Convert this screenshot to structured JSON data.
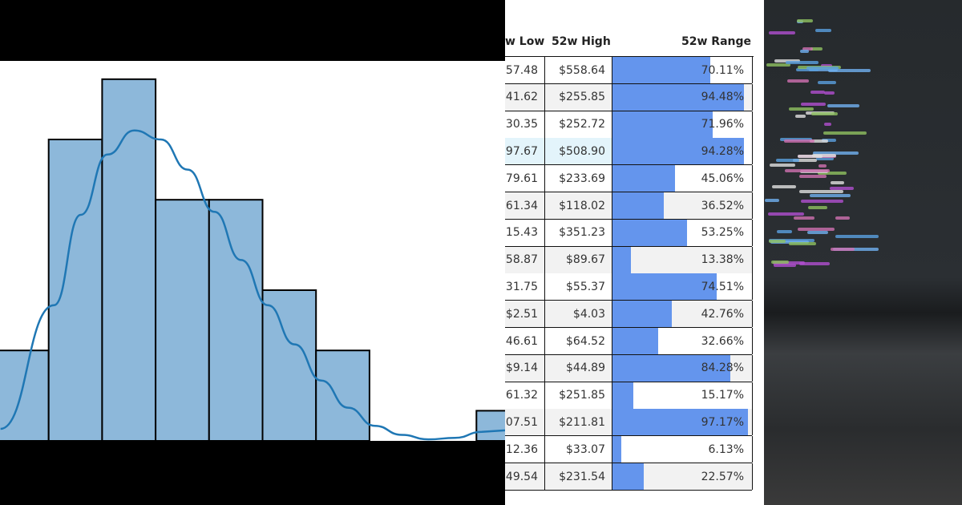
{
  "chart_data": {
    "type": "bar",
    "subtype": "histogram with kde line",
    "bin_counts": [
      3,
      10,
      12,
      8,
      8,
      5,
      3,
      0,
      0,
      1
    ],
    "kde": [
      [
        0,
        0.4
      ],
      [
        1,
        4.5
      ],
      [
        1.5,
        7.5
      ],
      [
        2,
        9.5
      ],
      [
        2.5,
        10.3
      ],
      [
        3,
        10.0
      ],
      [
        3.5,
        9.0
      ],
      [
        4,
        7.6
      ],
      [
        4.5,
        6.0
      ],
      [
        5,
        4.5
      ],
      [
        5.5,
        3.2
      ],
      [
        6,
        2.0
      ],
      [
        6.5,
        1.1
      ],
      [
        7,
        0.5
      ],
      [
        7.5,
        0.2
      ],
      [
        8,
        0.05
      ],
      [
        8.5,
        0.1
      ],
      [
        9,
        0.3
      ]
    ],
    "bar_color": "#8db8da",
    "line_color": "#1f77b4",
    "grid": false
  },
  "table": {
    "headers": {
      "low": "w Low",
      "high": "52w High",
      "range": "52w Range"
    },
    "bar_color": "#6495ed",
    "rows": [
      {
        "low": "57.48",
        "high": "$558.64",
        "range": "70.11%",
        "pct": 70.11
      },
      {
        "low": "41.62",
        "high": "$255.85",
        "range": "94.48%",
        "pct": 94.48
      },
      {
        "low": "30.35",
        "high": "$252.72",
        "range": "71.96%",
        "pct": 71.96
      },
      {
        "low": "97.67",
        "high": "$508.90",
        "range": "94.28%",
        "pct": 94.28,
        "highlight": true
      },
      {
        "low": "79.61",
        "high": "$233.69",
        "range": "45.06%",
        "pct": 45.06
      },
      {
        "low": "61.34",
        "high": "$118.02",
        "range": "36.52%",
        "pct": 36.52
      },
      {
        "low": "15.43",
        "high": "$351.23",
        "range": "53.25%",
        "pct": 53.25
      },
      {
        "low": "58.87",
        "high": "$89.67",
        "range": "13.38%",
        "pct": 13.38
      },
      {
        "low": "31.75",
        "high": "$55.37",
        "range": "74.51%",
        "pct": 74.51
      },
      {
        "low": "$2.51",
        "high": "$4.03",
        "range": "42.76%",
        "pct": 42.76
      },
      {
        "low": "46.61",
        "high": "$64.52",
        "range": "32.66%",
        "pct": 32.66
      },
      {
        "low": "$9.14",
        "high": "$44.89",
        "range": "84.28%",
        "pct": 84.28
      },
      {
        "low": "61.32",
        "high": "$251.85",
        "range": "15.17%",
        "pct": 15.17
      },
      {
        "low": "07.51",
        "high": "$211.81",
        "range": "97.17%",
        "pct": 97.17
      },
      {
        "low": "12.36",
        "high": "$33.07",
        "range": "6.13%",
        "pct": 6.13
      },
      {
        "low": "49.54",
        "high": "$231.54",
        "range": "22.57%",
        "pct": 22.57
      }
    ]
  }
}
